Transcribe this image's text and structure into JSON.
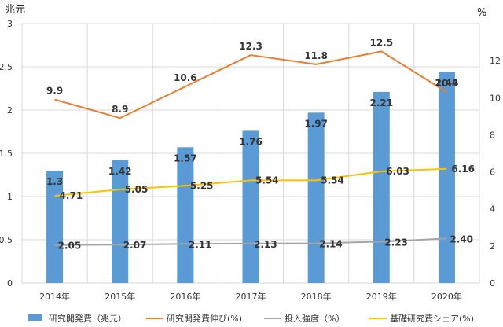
{
  "chart_data": {
    "type": "bar+line",
    "categories": [
      "2014年",
      "2015年",
      "2016年",
      "2017年",
      "2018年",
      "2019年",
      "2020年"
    ],
    "left_axis": {
      "unit": "兆元",
      "ylim": [
        0,
        3
      ],
      "ticks": [
        "0",
        "0.5",
        "1",
        "1.5",
        "2",
        "2.5",
        "3"
      ]
    },
    "right_axis": {
      "unit": "%",
      "ylim": [
        0,
        14
      ],
      "ticks": [
        "0",
        "2",
        "4",
        "6",
        "8",
        "10",
        "12"
      ]
    },
    "grid": true,
    "legend_position": "bottom",
    "series": [
      {
        "name": "研究開発費（兆元）",
        "type": "bar",
        "axis": "left",
        "color": "#5B9BD5",
        "values": [
          1.3,
          1.42,
          1.57,
          1.76,
          1.97,
          2.21,
          2.44
        ],
        "labels": [
          "1.3",
          "1.42",
          "1.57",
          "1.76",
          "1.97",
          "2.21",
          "2.44"
        ]
      },
      {
        "name": "研究開発費伸び(%)",
        "type": "line",
        "axis": "right",
        "color": "#ED7D31",
        "values": [
          9.9,
          8.9,
          10.6,
          12.3,
          11.8,
          12.5,
          10.3
        ],
        "labels": [
          "9.9",
          "8.9",
          "10.6",
          "12.3",
          "11.8",
          "12.5",
          "10.3"
        ]
      },
      {
        "name": "投入強度（%）",
        "type": "line",
        "axis": "right",
        "color": "#A5A5A5",
        "values": [
          2.05,
          2.07,
          2.11,
          2.13,
          2.14,
          2.23,
          2.4
        ],
        "labels": [
          "2.05",
          "2.07",
          "2.11",
          "2.13",
          "2.14",
          "2.23",
          "2.40"
        ]
      },
      {
        "name": "基礎研究費シェア(%)",
        "type": "line",
        "axis": "right",
        "color": "#FFC000",
        "values": [
          4.71,
          5.05,
          5.25,
          5.54,
          5.54,
          6.03,
          6.16
        ],
        "labels": [
          "4.71",
          "5.05",
          "5.25",
          "5.54",
          "5.54",
          "6.03",
          "6.16"
        ]
      }
    ]
  }
}
